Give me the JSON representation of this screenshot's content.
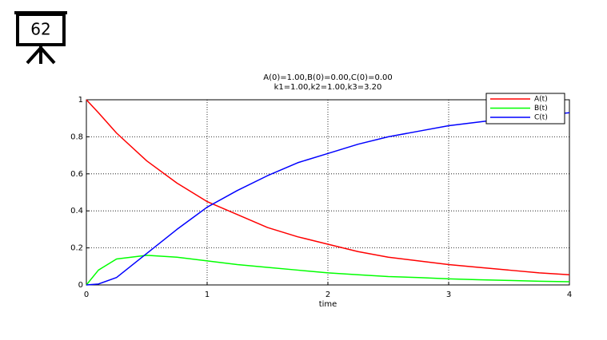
{
  "slide_number": "62",
  "chart_data": {
    "type": "line",
    "title": "A(0)=1.00,B(0)=0.00,C(0)=0.00",
    "subtitle": "k1=1.00,k2=1.00,k3=3.20",
    "x_label": "time",
    "x": [
      0,
      0.1,
      0.25,
      0.5,
      0.75,
      1,
      1.25,
      1.5,
      1.75,
      2,
      2.25,
      2.5,
      2.75,
      3,
      3.25,
      3.5,
      3.75,
      4
    ],
    "series": [
      {
        "name": "A(t)",
        "color": "#ff0000",
        "values": [
          1,
          0.93,
          0.82,
          0.67,
          0.55,
          0.45,
          0.38,
          0.31,
          0.26,
          0.22,
          0.18,
          0.15,
          0.13,
          0.11,
          0.095,
          0.08,
          0.065,
          0.055
        ]
      },
      {
        "name": "B(t)",
        "color": "#00ff00",
        "values": [
          0,
          0.08,
          0.14,
          0.16,
          0.15,
          0.13,
          0.11,
          0.095,
          0.08,
          0.065,
          0.055,
          0.045,
          0.04,
          0.033,
          0.028,
          0.024,
          0.02,
          0.017
        ]
      },
      {
        "name": "C(t)",
        "color": "#0000ff",
        "values": [
          0,
          0.005,
          0.04,
          0.17,
          0.3,
          0.42,
          0.51,
          0.59,
          0.66,
          0.71,
          0.76,
          0.8,
          0.83,
          0.86,
          0.88,
          0.9,
          0.915,
          0.93
        ]
      }
    ],
    "xlim": [
      0,
      4
    ],
    "xticks": [
      0,
      1,
      2,
      3,
      4
    ],
    "ylim": [
      0,
      1
    ],
    "yticks": [
      0,
      0.2,
      0.4,
      0.6,
      0.8,
      1
    ],
    "grid": true,
    "legend": "upper right"
  }
}
